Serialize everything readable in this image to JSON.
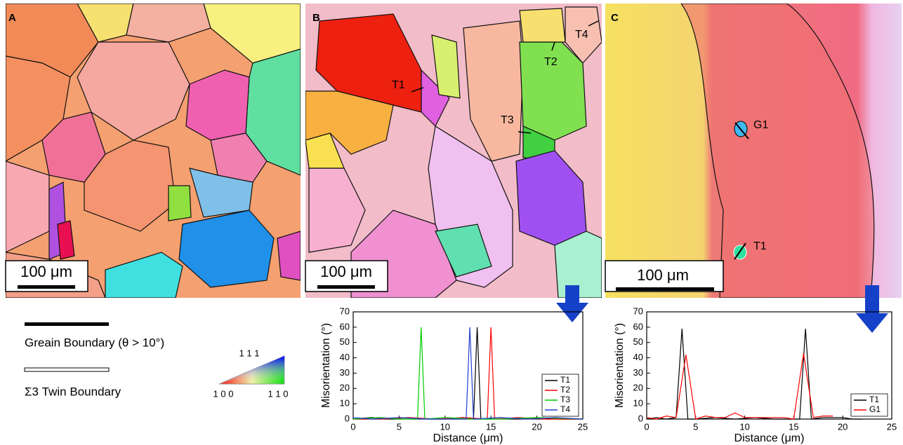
{
  "panels": [
    {
      "label": "A",
      "scale_bar": "100 μm"
    },
    {
      "label": "B",
      "scale_bar": "100 μm",
      "annotations": [
        "T1",
        "T2",
        "T3",
        "T4"
      ]
    },
    {
      "label": "C",
      "scale_bar": "100 μm",
      "annotations": [
        "G1",
        "T1"
      ]
    }
  ],
  "legend": {
    "grain_boundary": "Greain Boundary (θ > 10°)",
    "twin_boundary": "Σ3 Twin Boundary",
    "ipf": {
      "top": "1 1 1",
      "left": "1 0 0",
      "right": "1 1 0"
    }
  },
  "chart_data": [
    {
      "type": "line",
      "xlabel": "Distance (μm)",
      "ylabel": "Misorientation (°)",
      "xlim": [
        0,
        25
      ],
      "xticks": [
        0,
        5,
        10,
        15,
        20,
        25
      ],
      "ylim": [
        0,
        70
      ],
      "yticks": [
        0,
        10,
        20,
        30,
        40,
        50,
        60,
        70
      ],
      "legend": "lower right",
      "series": [
        {
          "name": "T1",
          "color": "#000000",
          "x": [
            0,
            2,
            4,
            6,
            8,
            10,
            12,
            13.1,
            13.5,
            13.9,
            16,
            18,
            20,
            22,
            25
          ],
          "values": [
            0,
            1,
            0,
            1,
            0,
            0,
            1,
            0,
            60,
            0,
            1,
            0,
            1,
            0,
            0
          ]
        },
        {
          "name": "T2",
          "color": "#ff0000",
          "x": [
            0,
            3,
            6,
            9,
            12,
            14.6,
            15,
            15.4,
            18,
            21,
            25
          ],
          "values": [
            0,
            0,
            1,
            0,
            1,
            0,
            60,
            0,
            1,
            0,
            0
          ]
        },
        {
          "name": "T3",
          "color": "#00cc00",
          "x": [
            0,
            3,
            5,
            7,
            7.4,
            7.8,
            10,
            13,
            16,
            20,
            25
          ],
          "values": [
            0,
            1,
            0,
            0,
            60,
            0,
            1,
            0,
            0,
            1,
            0
          ]
        },
        {
          "name": "T4",
          "color": "#1f3fd0",
          "x": [
            0,
            2,
            5,
            8,
            12.3,
            12.7,
            13.1,
            16,
            19,
            22,
            25
          ],
          "values": [
            1,
            0,
            1,
            0,
            0,
            60,
            0,
            1,
            0,
            1,
            0
          ]
        }
      ]
    },
    {
      "type": "line",
      "xlabel": "Distance (μm)",
      "ylabel": "Misorientation (°)",
      "xlim": [
        0,
        25
      ],
      "xticks": [
        0,
        5,
        10,
        15,
        20,
        25
      ],
      "ylim": [
        0,
        70
      ],
      "yticks": [
        0,
        10,
        20,
        30,
        40,
        50,
        60,
        70
      ],
      "legend": "lower right",
      "series": [
        {
          "name": "T1",
          "color": "#000000",
          "x": [
            0,
            1,
            2,
            3,
            3.6,
            4.2,
            5,
            7,
            9,
            11,
            13,
            15.6,
            16.2,
            16.8,
            18,
            20,
            21,
            22
          ],
          "values": [
            0,
            1,
            0,
            1,
            59,
            0,
            0,
            1,
            0,
            1,
            0,
            0,
            59,
            0,
            1,
            1,
            0,
            0
          ]
        },
        {
          "name": "G1",
          "color": "#ff0000",
          "x": [
            0,
            1,
            2,
            3,
            4,
            5,
            6,
            7,
            8,
            9,
            10,
            11,
            12,
            13,
            14,
            15,
            16,
            17,
            18,
            19
          ],
          "values": [
            1,
            0,
            2,
            1,
            42,
            0,
            2,
            1,
            1,
            4,
            1,
            1,
            1,
            1,
            1,
            0,
            43,
            1,
            2,
            2
          ]
        }
      ]
    }
  ]
}
